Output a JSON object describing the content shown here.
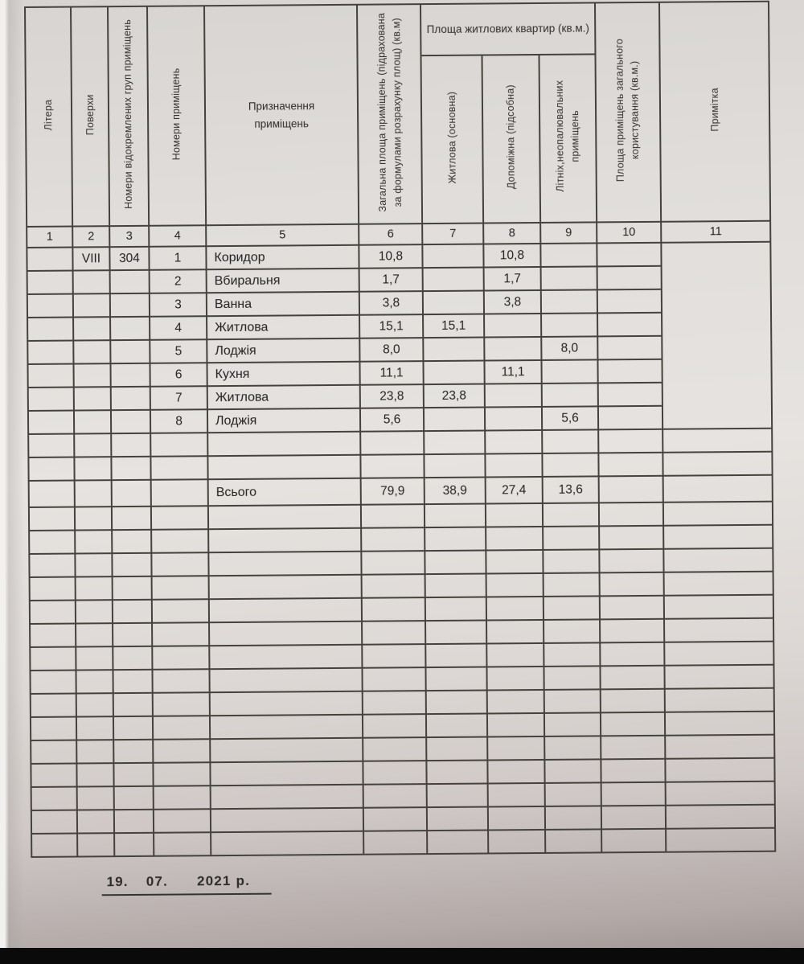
{
  "document": {
    "table": {
      "group_header": "Площа житлових квартир (кв.м.)",
      "columns": [
        {
          "num": "1",
          "label": "Літера"
        },
        {
          "num": "2",
          "label": "Поверхи"
        },
        {
          "num": "3",
          "label": "Номери відокремлених груп приміщень"
        },
        {
          "num": "4",
          "label": "Номери приміщень"
        },
        {
          "num": "5",
          "label": "Призначення приміщень"
        },
        {
          "num": "6",
          "label": "Загальна площа приміщень (підрахована за формулами розрахунку площ) (кв.м)"
        },
        {
          "num": "7",
          "label": "Житлова (основна)"
        },
        {
          "num": "8",
          "label": "Допоміжна (підсобна)"
        },
        {
          "num": "9",
          "label": "Літніх,неопалювальних приміщень"
        },
        {
          "num": "10",
          "label": "Площа приміщень загального користування (кв.м.)"
        },
        {
          "num": "11",
          "label": "Примітка"
        }
      ],
      "rows": [
        [
          "",
          "VIII",
          "304",
          "1",
          "Коридор",
          "10,8",
          "",
          "10,8",
          "",
          "",
          ""
        ],
        [
          "",
          "",
          "",
          "2",
          "Вбиральня",
          "1,7",
          "",
          "1,7",
          "",
          "",
          ""
        ],
        [
          "",
          "",
          "",
          "3",
          "Ванна",
          "3,8",
          "",
          "3,8",
          "",
          "",
          ""
        ],
        [
          "",
          "",
          "",
          "4",
          "Житлова",
          "15,1",
          "15,1",
          "",
          "",
          "",
          ""
        ],
        [
          "",
          "",
          "",
          "5",
          "Лоджія",
          "8,0",
          "",
          "",
          "8,0",
          "",
          ""
        ],
        [
          "",
          "",
          "",
          "6",
          "Кухня",
          "11,1",
          "",
          "11,1",
          "",
          "",
          ""
        ],
        [
          "",
          "",
          "",
          "7",
          "Житлова",
          "23,8",
          "23,8",
          "",
          "",
          "",
          ""
        ],
        [
          "",
          "",
          "",
          "8",
          "Лоджія",
          "5,6",
          "",
          "",
          "5,6",
          "",
          ""
        ]
      ],
      "empty_rows_before_total": 2,
      "total_row": [
        "",
        "",
        "",
        "",
        "Всього",
        "79,9",
        "38,9",
        "27,4",
        "13,6",
        "",
        ""
      ],
      "empty_rows_after_total": 15
    },
    "date": {
      "day": "19.",
      "month": "07.",
      "year": "2021 р."
    }
  }
}
